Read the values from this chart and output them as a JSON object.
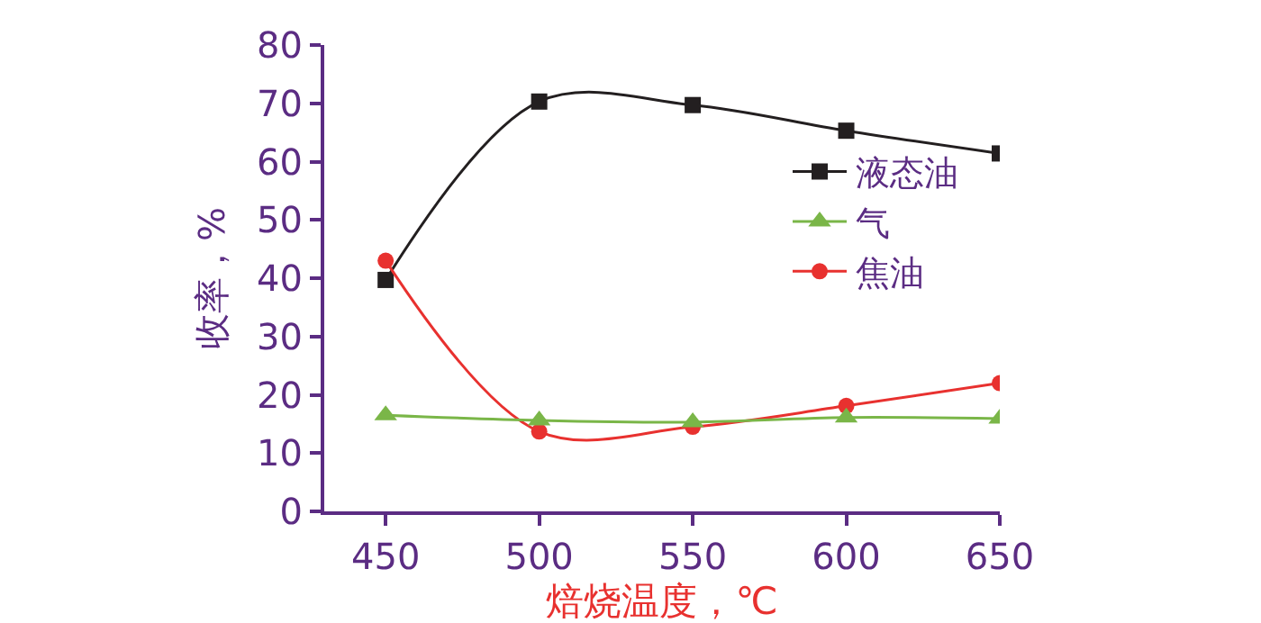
{
  "chart_data": {
    "type": "line",
    "xlabel": "焙烧温度，℃",
    "ylabel": "收率，%",
    "x": [
      450,
      500,
      550,
      600,
      650
    ],
    "series": [
      {
        "name": "液态油",
        "color": "#231f20",
        "marker": "square",
        "values": [
          39.7,
          70.3,
          69.7,
          65.3,
          61.4
        ]
      },
      {
        "name": "气",
        "color": "#7ab648",
        "marker": "triangle",
        "values": [
          16.5,
          15.6,
          15.3,
          16.1,
          15.9
        ]
      },
      {
        "name": "焦油",
        "color": "#e8312f",
        "marker": "circle",
        "values": [
          43.0,
          13.7,
          14.5,
          18.1,
          22.0
        ]
      }
    ],
    "xlim": [
      430,
      650
    ],
    "xticks": [
      450,
      500,
      550,
      600,
      650
    ],
    "ylim": [
      0,
      80
    ],
    "yticks": [
      0,
      10,
      20,
      30,
      40,
      50,
      60,
      70,
      80
    ],
    "grid": false,
    "legend": "right",
    "line_style": "solid"
  }
}
